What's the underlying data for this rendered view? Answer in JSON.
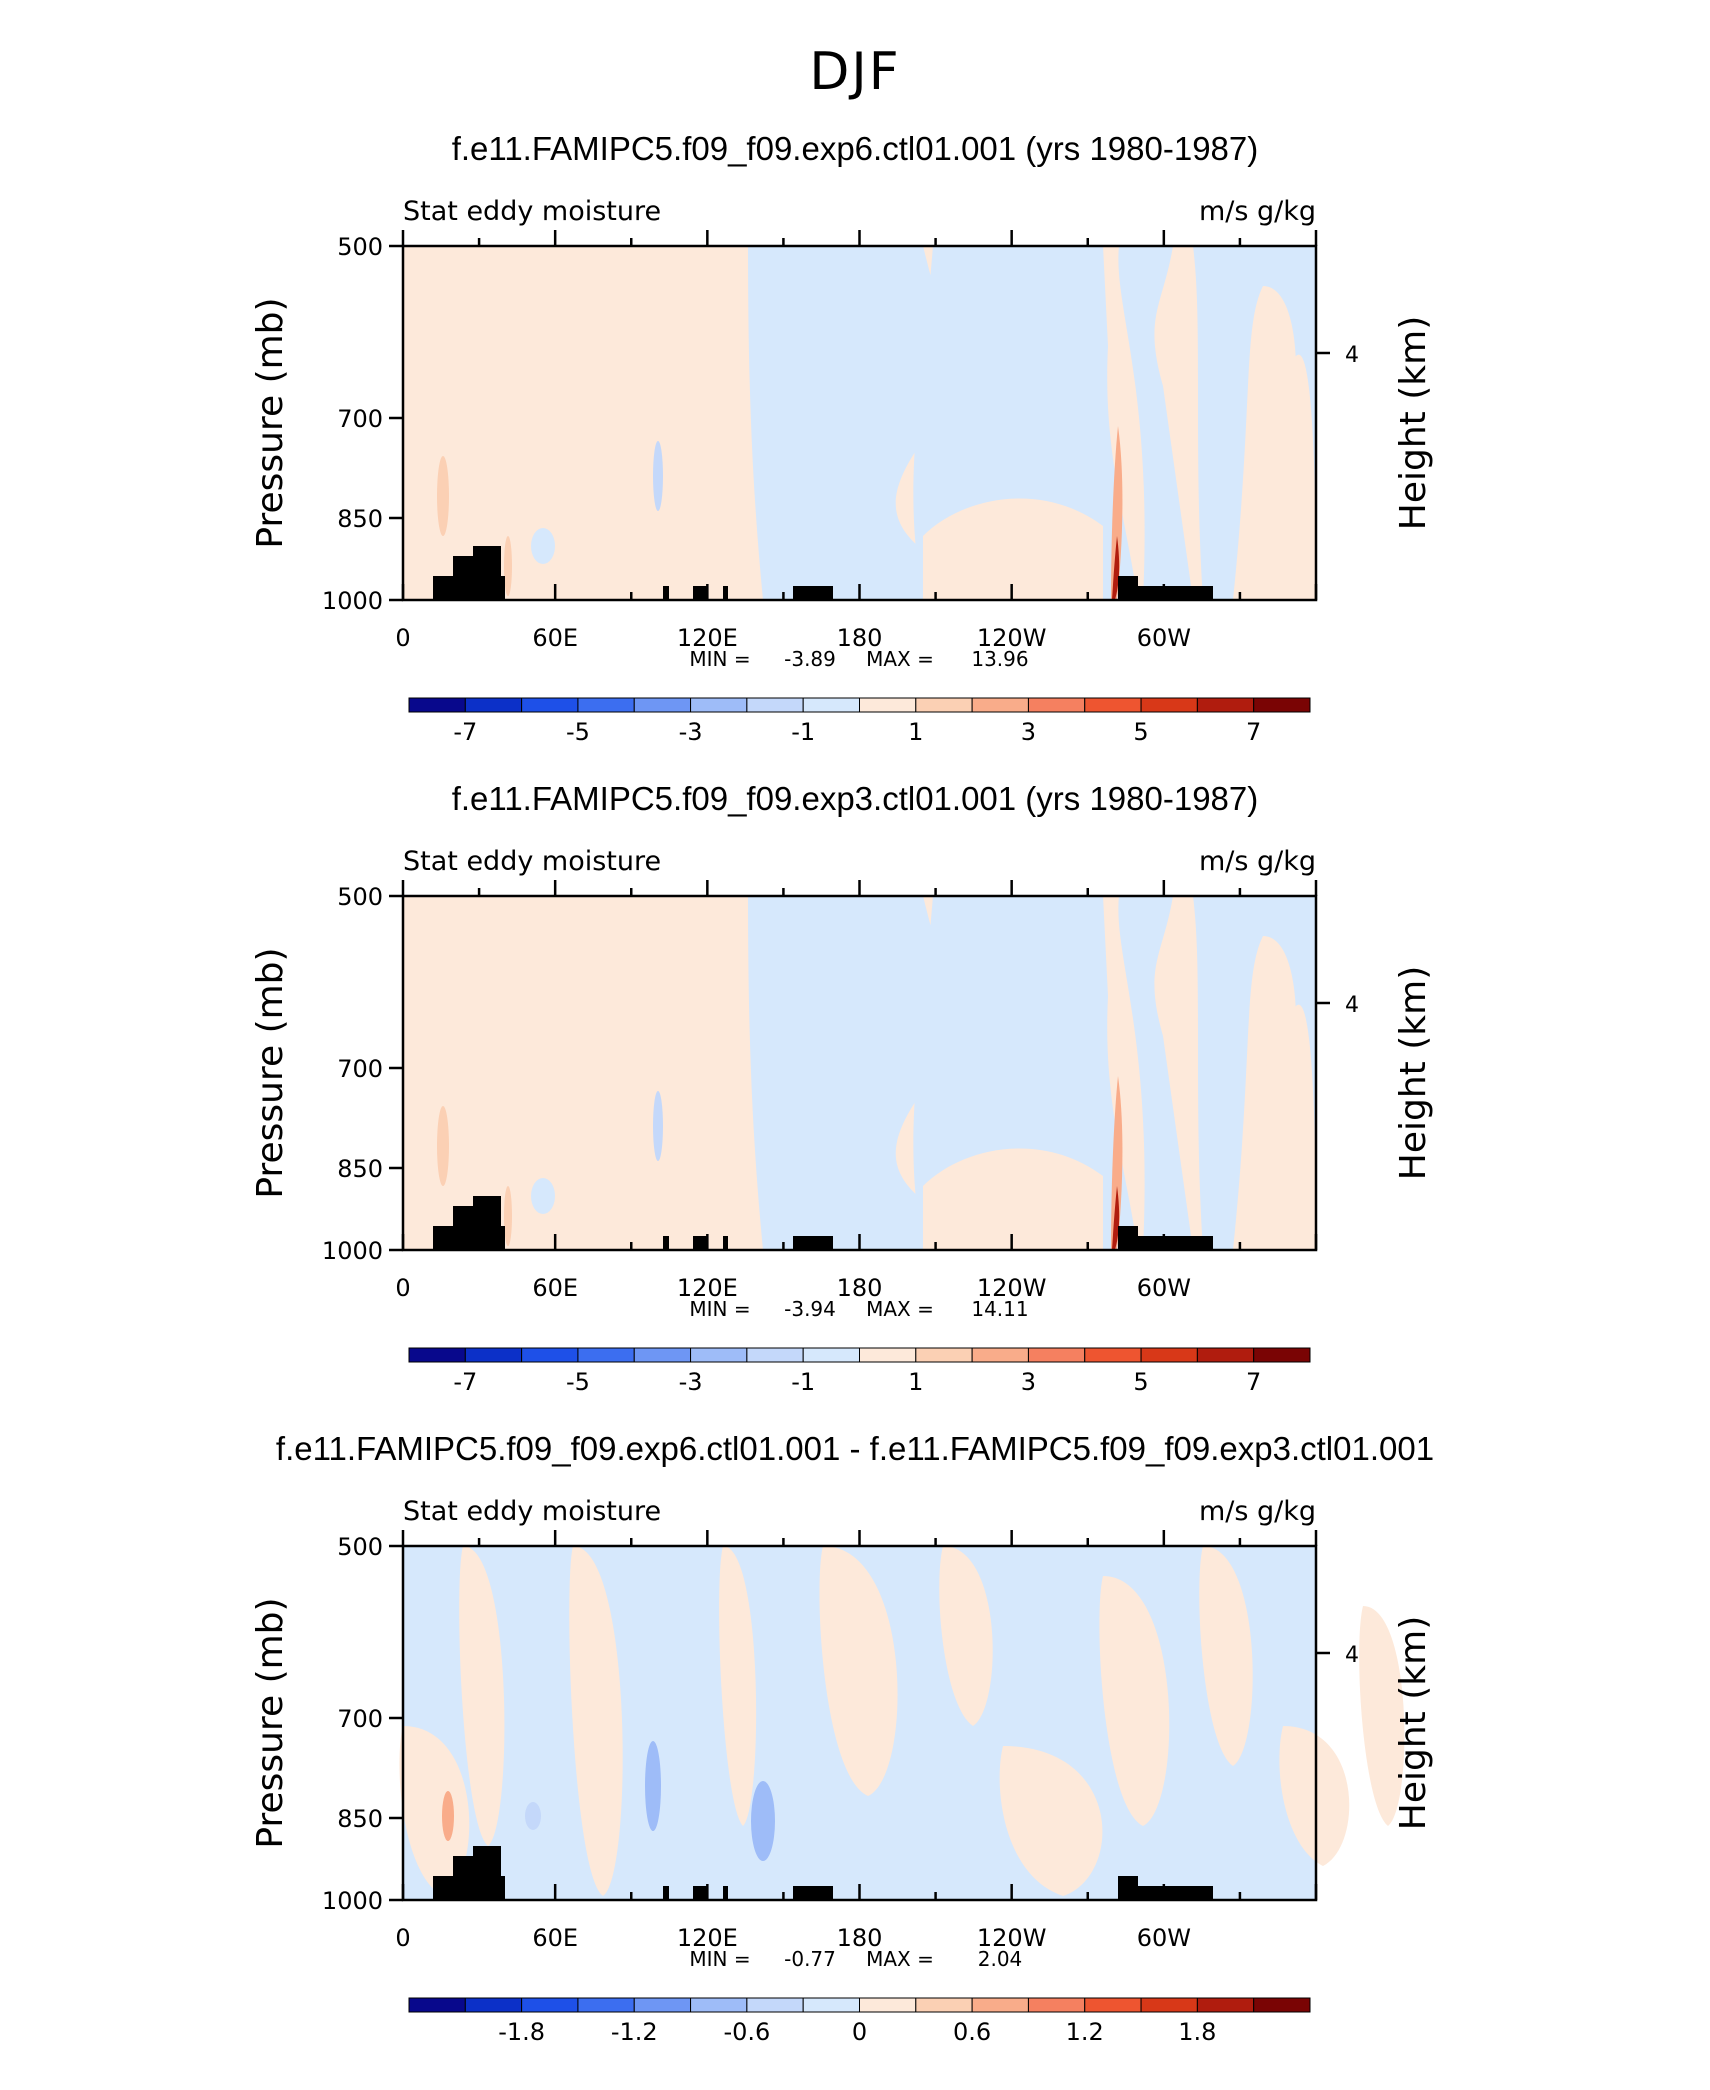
{
  "main_title": "DJF",
  "palette": [
    "#08088c",
    "#0c30c8",
    "#1e50e8",
    "#3c6ef0",
    "#6e96f4",
    "#9ebcf8",
    "#c4d8fa",
    "#d6e8fc",
    "#fde9da",
    "#fbd0b4",
    "#f9ac8a",
    "#f58060",
    "#ee5530",
    "#d83818",
    "#b01c0e",
    "#7a0404"
  ],
  "chart_data": [
    {
      "type": "heatmap",
      "title": "f.e11.FAMIPC5.f09_f09.exp6.ctl01.001 (yrs 1980-1987)",
      "left_label": "Stat eddy moisture",
      "right_label": "m/s g/kg",
      "ylabel": "Pressure (mb)",
      "ylabel_right": "Height (km)",
      "yticks": [
        "500",
        "700",
        "850",
        "1000"
      ],
      "ytick_right": "4",
      "xticks": [
        "0",
        "60E",
        "120E",
        "180",
        "120W",
        "60W"
      ],
      "stats": {
        "min_label": "MIN =",
        "min": "-3.89",
        "max_label": "MAX =",
        "max": "13.96"
      },
      "colorbar_labels": [
        "-7",
        "-5",
        "-3",
        "-1",
        "1",
        "3",
        "5",
        "7"
      ],
      "colorbar_range": [
        -8,
        8
      ]
    },
    {
      "type": "heatmap",
      "title": "f.e11.FAMIPC5.f09_f09.exp3.ctl01.001 (yrs 1980-1987)",
      "left_label": "Stat eddy moisture",
      "right_label": "m/s g/kg",
      "ylabel": "Pressure (mb)",
      "ylabel_right": "Height (km)",
      "yticks": [
        "500",
        "700",
        "850",
        "1000"
      ],
      "ytick_right": "4",
      "xticks": [
        "0",
        "60E",
        "120E",
        "180",
        "120W",
        "60W"
      ],
      "stats": {
        "min_label": "MIN =",
        "min": "-3.94",
        "max_label": "MAX =",
        "max": "14.11"
      },
      "colorbar_labels": [
        "-7",
        "-5",
        "-3",
        "-1",
        "1",
        "3",
        "5",
        "7"
      ],
      "colorbar_range": [
        -8,
        8
      ]
    },
    {
      "type": "heatmap",
      "title": "f.e11.FAMIPC5.f09_f09.exp6.ctl01.001 - f.e11.FAMIPC5.f09_f09.exp3.ctl01.001",
      "left_label": "Stat eddy moisture",
      "right_label": "m/s g/kg",
      "ylabel": "Pressure (mb)",
      "ylabel_right": "Height (km)",
      "yticks": [
        "500",
        "700",
        "850",
        "1000"
      ],
      "ytick_right": "4",
      "xticks": [
        "0",
        "60E",
        "120E",
        "180",
        "120W",
        "60W"
      ],
      "stats": {
        "min_label": "MIN =",
        "min": "-0.77",
        "max_label": "MAX =",
        "max": "2.04"
      },
      "colorbar_labels": [
        "-1.8",
        "-1.2",
        "-0.6",
        "0",
        "0.6",
        "1.2",
        "1.8"
      ],
      "colorbar_range": [
        -2.4,
        2.4
      ]
    }
  ]
}
